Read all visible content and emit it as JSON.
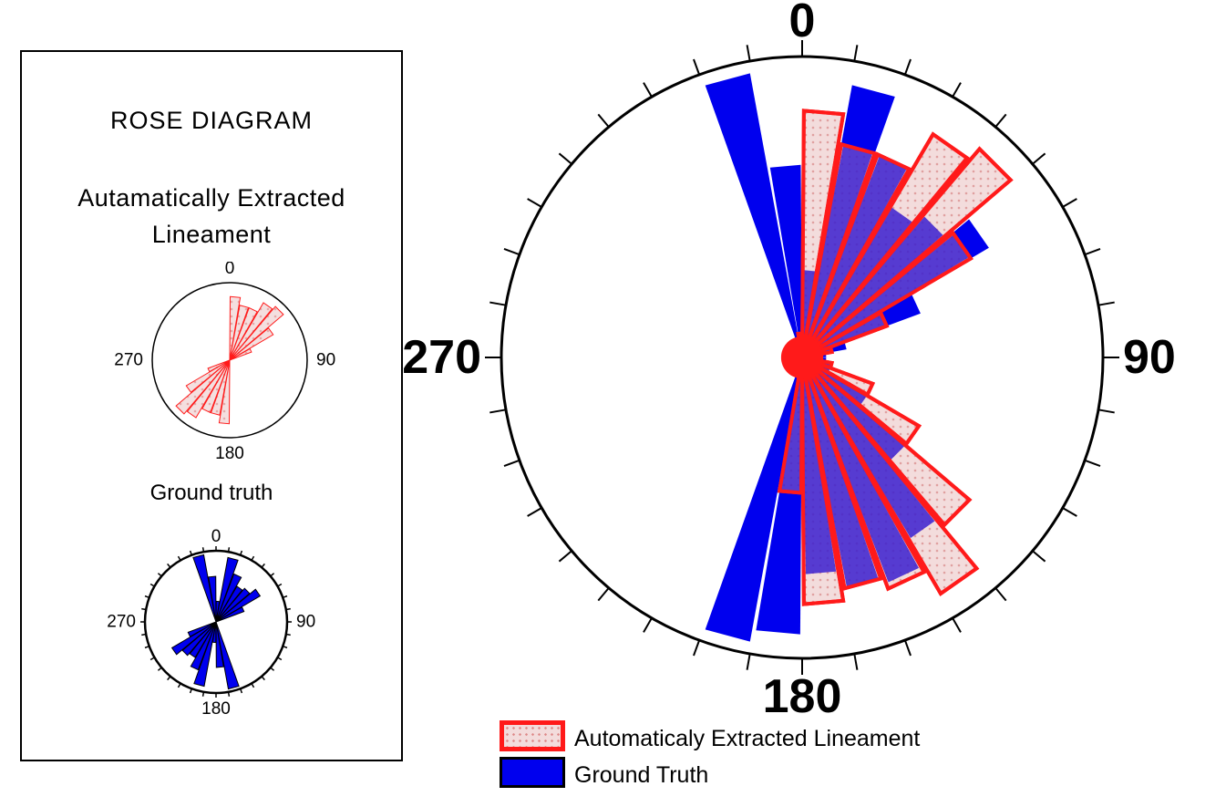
{
  "inset": {
    "title": "ROSE DIAGRAM",
    "auto_title_line1": "Autamatically Extracted",
    "auto_title_line2": "Lineament",
    "gt_title": "Ground truth"
  },
  "legend": {
    "auto_label": "Automaticaly Extracted Lineament",
    "gt_label": "Ground Truth"
  },
  "colors": {
    "auto_outline": "#ff1a1a",
    "auto_fill": "#f3dcdc",
    "gt_fill": "#0000ee",
    "overlap_fill": "#3a1fcf"
  },
  "chart_data": [
    {
      "type": "rose",
      "name": "main",
      "direction_labels": [
        "0",
        "90",
        "180",
        "270"
      ],
      "bin_width_deg": 10,
      "symmetric": true,
      "series": [
        {
          "name": "Ground Truth",
          "directions_deg": [
            -15,
            -5,
            5,
            15,
            25,
            35,
            45,
            55,
            65,
            75,
            85,
            95,
            105,
            115,
            125,
            135,
            145,
            155,
            165,
            175,
            185,
            195
          ],
          "values": [
            0.96,
            0.64,
            0.29,
            0.92,
            0.72,
            0.58,
            0.62,
            0.72,
            0.42,
            0.15,
            0.08,
            0.08,
            0.1,
            0.1,
            0.25,
            0.45,
            0.7,
            0.8,
            0.78,
            0.72,
            0.92,
            0.96
          ]
        },
        {
          "name": "Automaticaly Extracted Lineament",
          "directions_deg": [
            -15,
            -5,
            5,
            15,
            25,
            35,
            45,
            55,
            65,
            75,
            85,
            95,
            105,
            115,
            125,
            135,
            145,
            155,
            165,
            175,
            185,
            195
          ],
          "values": [
            0.05,
            0.08,
            0.82,
            0.72,
            0.72,
            0.86,
            0.91,
            0.65,
            0.3,
            0.1,
            0.05,
            0.05,
            0.1,
            0.25,
            0.45,
            0.73,
            0.91,
            0.82,
            0.78,
            0.82,
            0.45,
            0.05
          ]
        }
      ]
    },
    {
      "type": "rose",
      "name": "inset-auto",
      "direction_labels": [
        "0",
        "90",
        "180",
        "270"
      ],
      "series": [
        {
          "name": "Automaticaly Extracted Lineament",
          "directions_deg": [
            5,
            15,
            25,
            35,
            45,
            55,
            65,
            185,
            195,
            205,
            215,
            225,
            235,
            245
          ],
          "values": [
            0.82,
            0.72,
            0.72,
            0.86,
            0.91,
            0.65,
            0.3,
            0.82,
            0.72,
            0.72,
            0.86,
            0.91,
            0.65,
            0.3
          ]
        }
      ]
    },
    {
      "type": "rose",
      "name": "inset-gt",
      "direction_labels": [
        "0",
        "90",
        "180",
        "270"
      ],
      "series": [
        {
          "name": "Ground Truth",
          "directions_deg": [
            -15,
            -5,
            5,
            15,
            25,
            35,
            45,
            55,
            65,
            165,
            175,
            185,
            195,
            205,
            215,
            225,
            235,
            245
          ],
          "values": [
            0.96,
            0.64,
            0.29,
            0.92,
            0.72,
            0.58,
            0.62,
            0.72,
            0.42,
            0.96,
            0.64,
            0.29,
            0.92,
            0.72,
            0.58,
            0.62,
            0.72,
            0.42
          ]
        }
      ]
    }
  ]
}
